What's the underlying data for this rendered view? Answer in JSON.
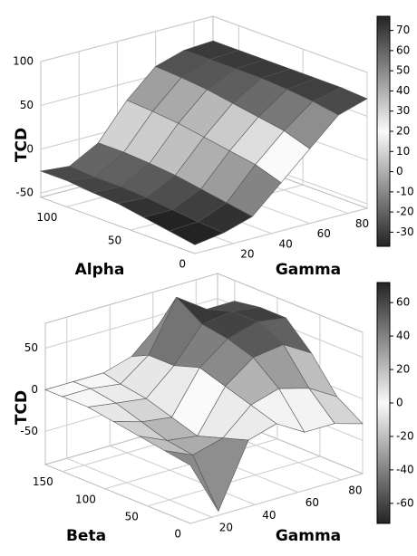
{
  "chart_data": [
    {
      "type": "surface",
      "zlabel": "TCD",
      "xlabel": "Alpha",
      "ylabel": "Gamma",
      "x": [
        0,
        20,
        40,
        60,
        80,
        100,
        120
      ],
      "y": [
        0,
        15,
        30,
        45,
        60,
        75,
        90
      ],
      "z": [
        [
          -45,
          -40,
          -35,
          -30,
          -28,
          -25,
          -25
        ],
        [
          -40,
          -38,
          -35,
          -32,
          -30,
          -30,
          -28
        ],
        [
          -30,
          -25,
          -20,
          -15,
          -12,
          -10,
          -10
        ],
        [
          0,
          10,
          15,
          20,
          25,
          28,
          30
        ],
        [
          30,
          40,
          45,
          50,
          55,
          58,
          60
        ],
        [
          60,
          65,
          68,
          70,
          70,
          70,
          70
        ],
        [
          70,
          72,
          72,
          72,
          72,
          72,
          72
        ]
      ],
      "xlim": [
        0,
        120
      ],
      "ylim": [
        0,
        90
      ],
      "zlim": [
        -55,
        100
      ],
      "xticks": [
        0,
        50,
        100
      ],
      "yticks": [
        20,
        40,
        60,
        80
      ],
      "zticks": [
        -50,
        0,
        50,
        100
      ],
      "clim": [
        -37,
        77
      ],
      "cticks": [
        -30,
        -20,
        -10,
        0,
        10,
        20,
        30,
        40,
        50,
        60,
        70
      ],
      "grid": true
    },
    {
      "type": "surface",
      "zlabel": "TCD",
      "xlabel": "Beta",
      "ylabel": "Gamma",
      "x": [
        0,
        30,
        60,
        90,
        120,
        150,
        170
      ],
      "y": [
        10,
        23,
        37,
        50,
        63,
        77,
        90
      ],
      "z": [
        [
          -20,
          -15,
          -10,
          -5,
          0,
          0,
          0
        ],
        [
          -85,
          -30,
          -25,
          -15,
          -5,
          0,
          0
        ],
        [
          -10,
          -20,
          -30,
          -20,
          -10,
          -5,
          0
        ],
        [
          0,
          10,
          20,
          30,
          20,
          20,
          10
        ],
        [
          -20,
          20,
          45,
          55,
          60,
          80,
          40
        ],
        [
          -20,
          10,
          50,
          65,
          65,
          55,
          40
        ],
        [
          -30,
          -10,
          30,
          60,
          60,
          55,
          40
        ]
      ],
      "xlim": [
        0,
        170
      ],
      "ylim": [
        10,
        90
      ],
      "zlim": [
        -90,
        80
      ],
      "xticks": [
        0,
        50,
        100,
        150
      ],
      "yticks": [
        20,
        40,
        60,
        80
      ],
      "zticks": [
        -50,
        0,
        50
      ],
      "clim": [
        -72,
        72
      ],
      "cticks": [
        -60,
        -40,
        -20,
        0,
        20,
        40,
        60
      ],
      "grid": true
    }
  ]
}
